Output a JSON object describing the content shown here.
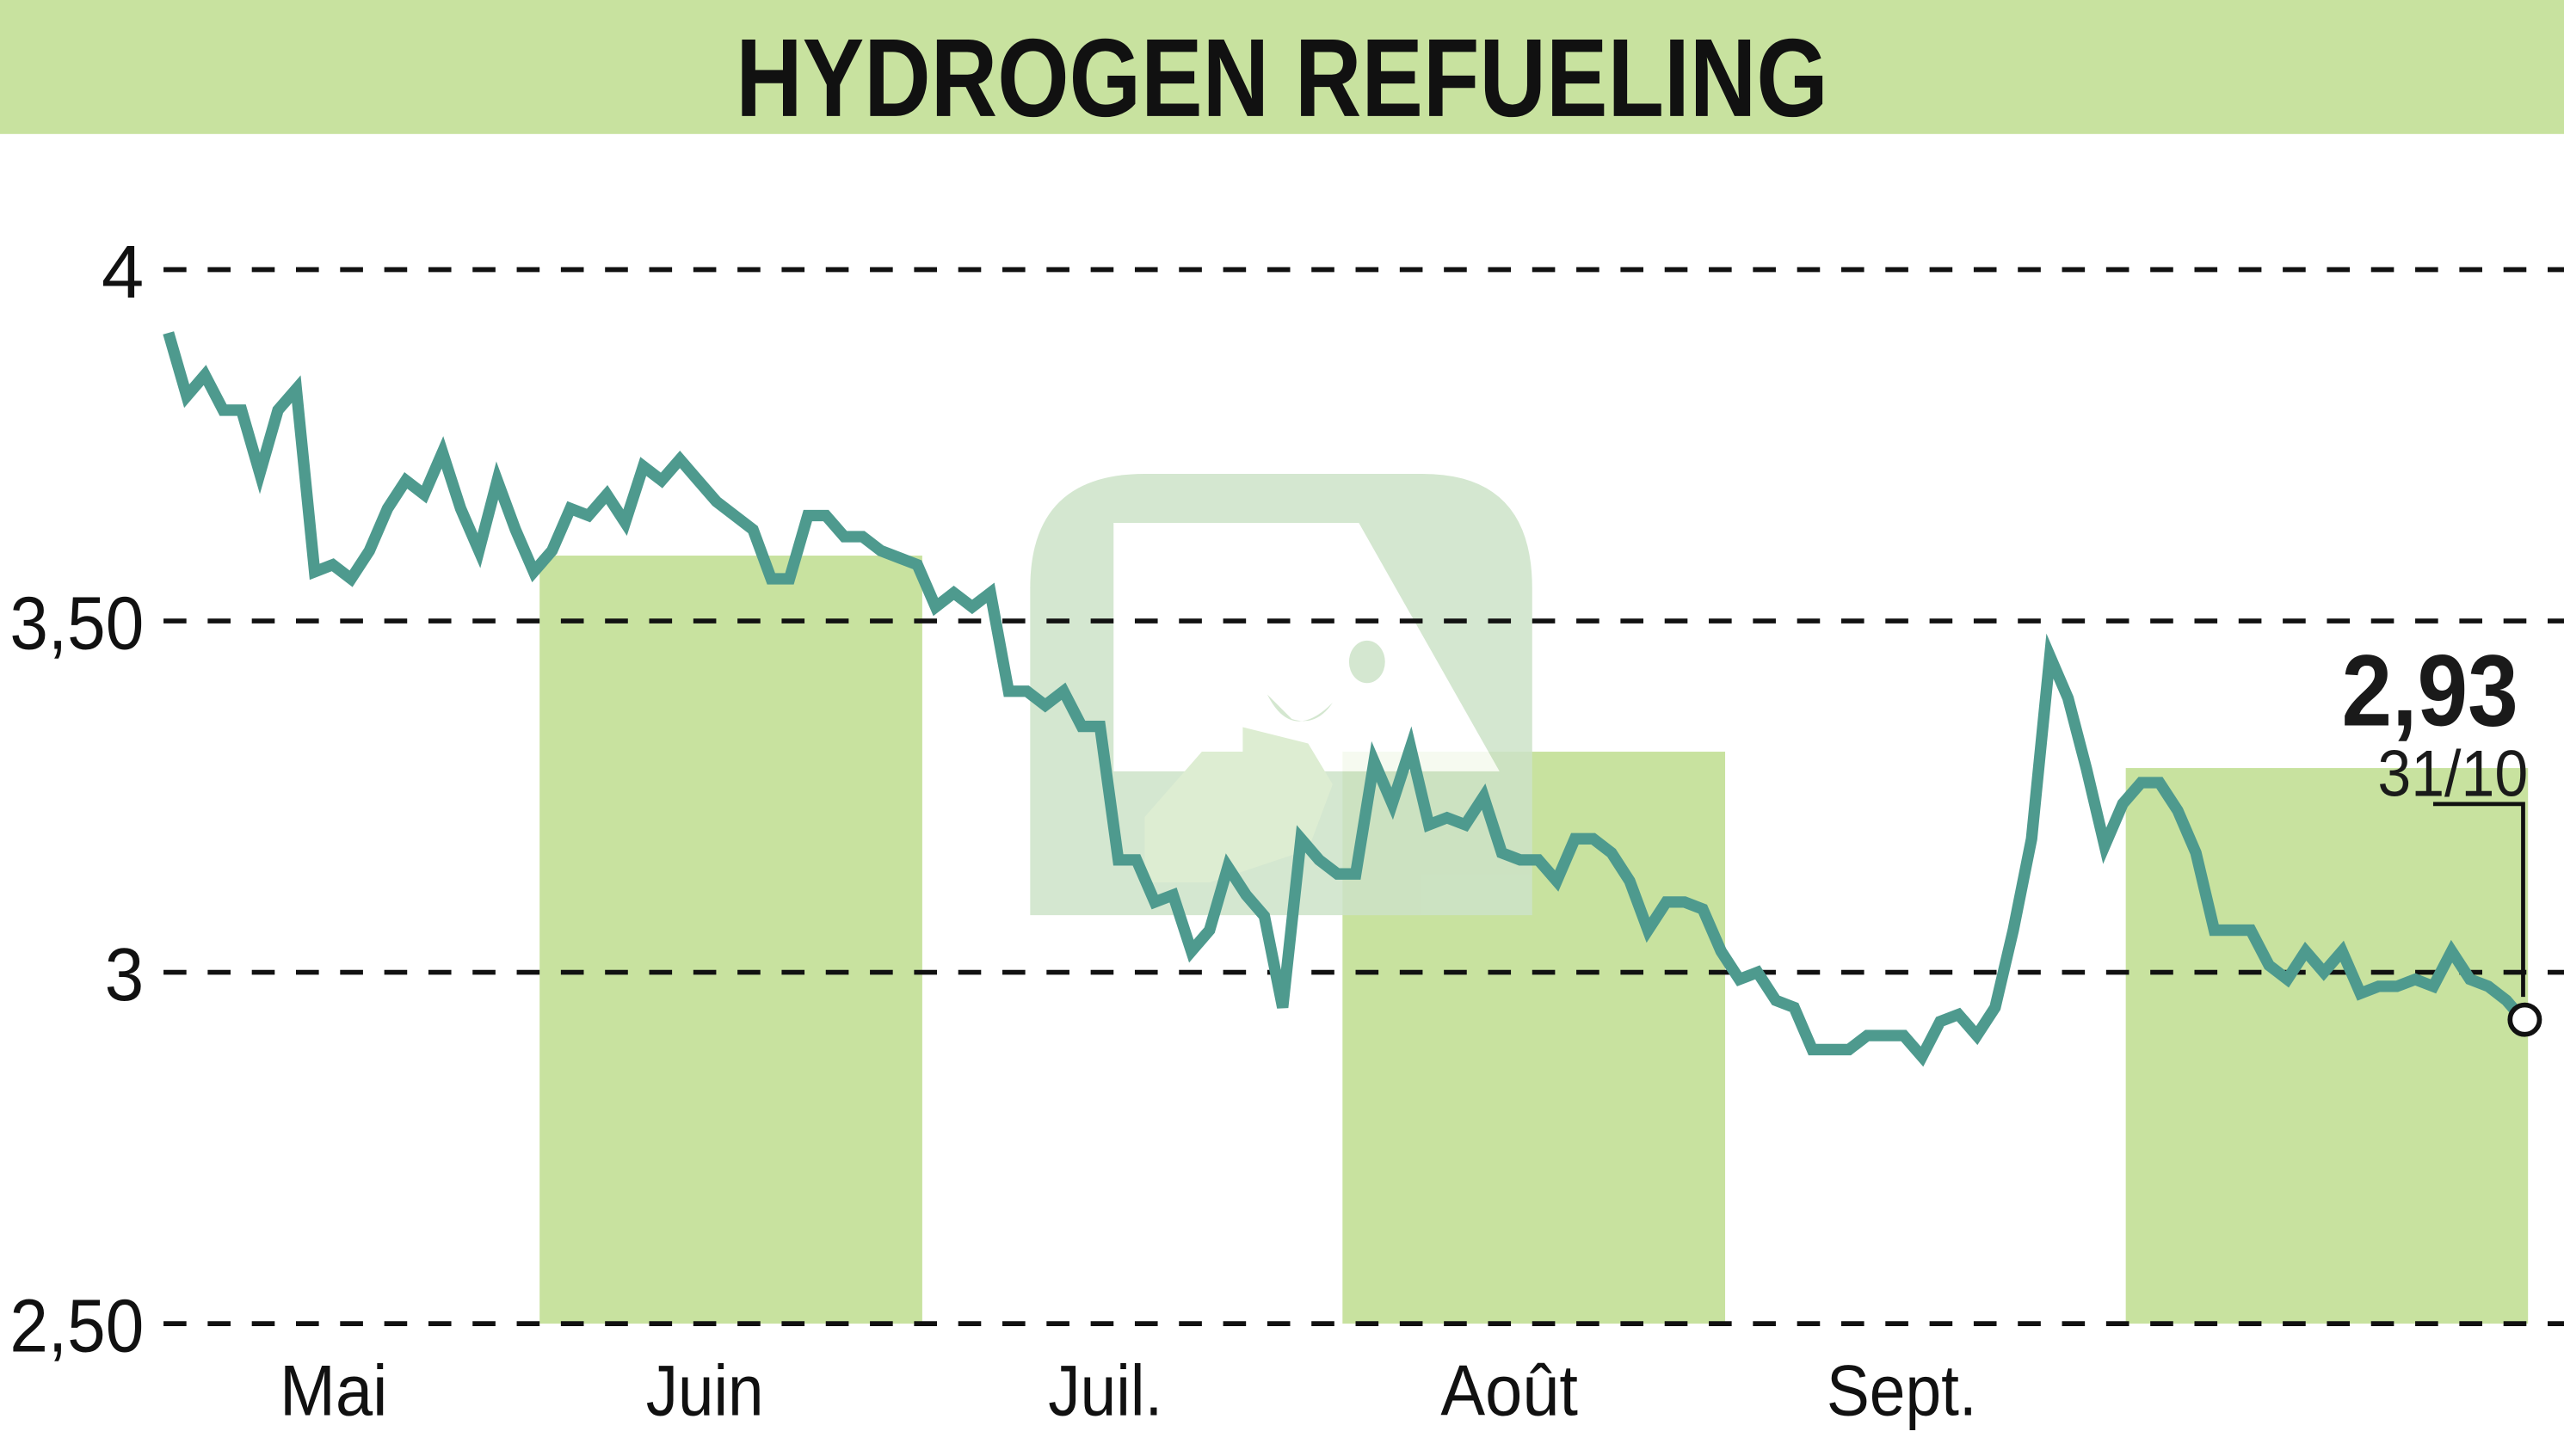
{
  "title": "HYDROGEN REFUELING",
  "colors": {
    "header_band": "#c8e29f",
    "month_band": "#c8e29f",
    "line": "#4e9a8e",
    "grid": "#111111",
    "text": "#1a1a1a",
    "watermark": "#c9e1c6"
  },
  "last_quote": {
    "value": "2,93",
    "date": "31/10"
  },
  "chart_data": {
    "type": "line",
    "title": "HYDROGEN REFUELING",
    "xlabel": "",
    "ylabel": "",
    "ylim": [
      2.5,
      4.0
    ],
    "yticks": [
      4,
      3.5,
      3,
      2.5
    ],
    "ytick_labels": [
      "4",
      "3,50",
      "3",
      "2,50"
    ],
    "xtick_labels": [
      "Mai",
      "Juin",
      "Juil.",
      "Août",
      "Sept."
    ],
    "grid": "horizontal dashed",
    "legend": "none",
    "shaded_months": [
      "Juin",
      "Août",
      "Oct."
    ],
    "annotation": {
      "value": 2.93,
      "label": "2,93",
      "date": "31/10"
    },
    "series": [
      {
        "name": "HYDROGEN REFUELING",
        "x_index": "trading day (approx.) from early May to 31/10",
        "values": [
          3.91,
          3.82,
          3.85,
          3.8,
          3.8,
          3.71,
          3.8,
          3.83,
          3.57,
          3.58,
          3.56,
          3.6,
          3.66,
          3.7,
          3.68,
          3.74,
          3.66,
          3.6,
          3.7,
          3.63,
          3.57,
          3.6,
          3.66,
          3.65,
          3.68,
          3.64,
          3.72,
          3.7,
          3.73,
          3.7,
          3.67,
          3.65,
          3.63,
          3.56,
          3.56,
          3.65,
          3.65,
          3.62,
          3.62,
          3.6,
          3.59,
          3.58,
          3.52,
          3.54,
          3.52,
          3.54,
          3.4,
          3.4,
          3.38,
          3.4,
          3.35,
          3.35,
          3.16,
          3.16,
          3.1,
          3.11,
          3.03,
          3.06,
          3.15,
          3.11,
          3.08,
          2.95,
          3.19,
          3.16,
          3.14,
          3.14,
          3.3,
          3.24,
          3.32,
          3.21,
          3.22,
          3.21,
          3.25,
          3.17,
          3.16,
          3.16,
          3.13,
          3.19,
          3.19,
          3.17,
          3.13,
          3.06,
          3.1,
          3.1,
          3.09,
          3.03,
          2.99,
          3.0,
          2.96,
          2.95,
          2.89,
          2.89,
          2.89,
          2.91,
          2.91,
          2.91,
          2.88,
          2.93,
          2.94,
          2.91,
          2.95,
          3.06,
          3.19,
          3.45,
          3.39,
          3.29,
          3.18,
          3.24,
          3.27,
          3.27,
          3.23,
          3.17,
          3.06,
          3.06,
          3.06,
          3.01,
          2.99,
          3.03,
          3.0,
          3.03,
          2.97,
          2.98,
          2.98,
          2.99,
          2.98,
          3.03,
          2.99,
          2.98,
          2.96,
          2.93
        ]
      }
    ]
  }
}
